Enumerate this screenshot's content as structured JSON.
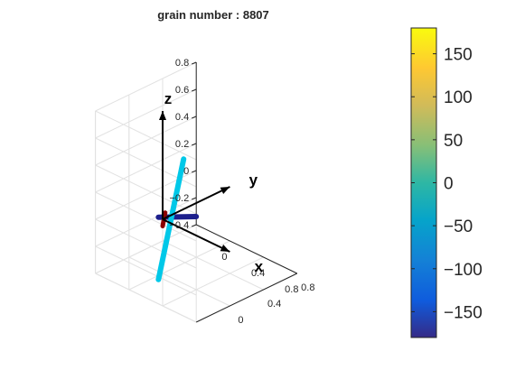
{
  "chart_data": {
    "type": "line",
    "title": "grain number : 8807",
    "axis_labels": [
      "x",
      "y",
      "z"
    ],
    "z_ticks": [
      "0.8",
      "0.6",
      "0.4",
      "0.2",
      "0",
      "−0.2",
      "−0.4"
    ],
    "x_ticks": [
      "0",
      "0.4",
      "0.8"
    ],
    "y_ticks": [
      "0",
      "0.4",
      "0.8"
    ],
    "colorbar": {
      "colormap": "parula",
      "range": [
        -180,
        180
      ],
      "ticks": [
        "150",
        "100",
        "50",
        "0",
        "−50",
        "−100",
        "−150"
      ],
      "tick_values": [
        150,
        100,
        50,
        0,
        -50,
        -100,
        -150
      ]
    },
    "grid": true,
    "series": [
      {
        "color": "#1c1f8c",
        "start": [
          0.5,
          -0.1,
          0.2
        ],
        "end": [
          -0.3,
          0.25,
          -0.15
        ]
      },
      {
        "color": "#00c8e8",
        "start": [
          -0.2,
          0.45,
          0.25
        ],
        "end": [
          0.3,
          -0.35,
          -0.25
        ]
      },
      {
        "color": "#8b0000",
        "start": [
          0.05,
          -0.02,
          0.07
        ],
        "end": [
          -0.05,
          0.05,
          -0.08
        ]
      }
    ],
    "reference_axes": {
      "color": "#000000",
      "x_end": [
        0.8,
        0,
        0
      ],
      "y_end": [
        0,
        0.8,
        0
      ],
      "z_end": [
        0,
        0,
        0.8
      ]
    }
  }
}
